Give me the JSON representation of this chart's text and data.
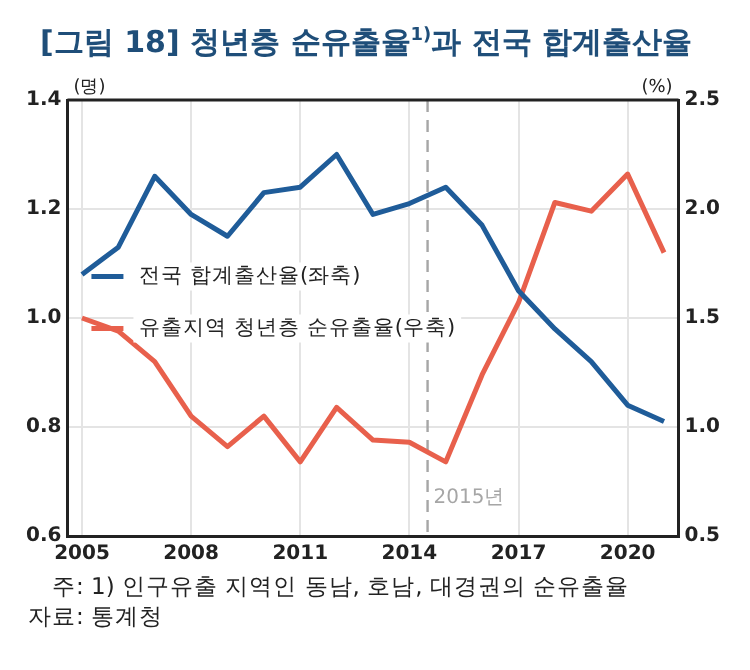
{
  "chart_data": {
    "type": "line",
    "title": "[그림 18] 청년층 순유출율$^{1)}$과 전국 합계출산율",
    "ylabel": "(명)",
    "y2label": "(%)",
    "x": [
      2005,
      2006,
      2007,
      2008,
      2009,
      2010,
      2011,
      2012,
      2013,
      2014,
      2015,
      2016,
      2017,
      2018,
      2019,
      2020,
      2021
    ],
    "series": [
      {
        "name": "전국 합계출산율(좌축)",
        "color": "#1f5c99",
        "values": [
          1.08,
          1.13,
          1.26,
          1.19,
          1.15,
          1.23,
          1.24,
          1.3,
          1.19,
          1.21,
          1.24,
          1.17,
          1.05,
          0.98,
          0.92,
          0.84,
          0.81
        ]
      },
      {
        "name": "유출지역 청년층 순유출율(우축)",
        "color": "#e8604c",
        "axis": "y2",
        "values": [
          1.5,
          1.44,
          1.3,
          1.05,
          0.91,
          1.05,
          0.84,
          1.09,
          0.94,
          0.93,
          0.84,
          1.24,
          1.57,
          2.03,
          1.99,
          2.16,
          1.8
        ]
      }
    ],
    "xlim": [
      2004.6,
      2021.4
    ],
    "xticks": [
      2005,
      2008,
      2011,
      2014,
      2017,
      2020
    ],
    "ylim": [
      0.6,
      1.4
    ],
    "yticks": [
      {
        "value": 0.6,
        "label": "0.6"
      },
      {
        "value": 0.8,
        "label": "0.8"
      },
      {
        "value": 1.0,
        "label": "1.0"
      },
      {
        "value": 1.2,
        "label": "1.2"
      },
      {
        "value": 1.4,
        "label": "1.4"
      }
    ],
    "y2lim": [
      0.5,
      2.5
    ],
    "y2ticks": [
      {
        "value": 0.5,
        "label": "0.5"
      },
      {
        "value": 1.0,
        "label": "1.0"
      },
      {
        "value": 1.5,
        "label": "1.5"
      },
      {
        "value": 2.0,
        "label": "2.0"
      },
      {
        "value": 2.5,
        "label": "2.5"
      }
    ],
    "ref_lines": [
      {
        "axis": "x",
        "value": 2014.5,
        "label": "2015년",
        "color": "#a6a6a6",
        "line_style": "dashed"
      }
    ],
    "grid": true,
    "legend": "left",
    "marker": "none",
    "line_style": "solid",
    "annotations": [
      "주: 1) 인구유출 지역인 동남, 호남, 대경권의 순유출율",
      "자료: 통계청"
    ]
  }
}
